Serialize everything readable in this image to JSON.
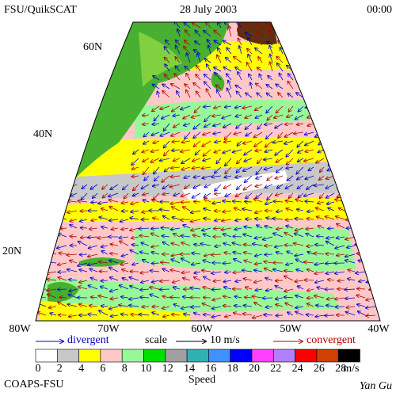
{
  "header": {
    "title": "FSU/QuikSCAT",
    "date": "28 July 2003",
    "time": "00:00"
  },
  "map": {
    "lat_labels": [
      "60N",
      "40N",
      "20N"
    ],
    "lon_labels": [
      "80W",
      "70W",
      "60W",
      "50W",
      "40W"
    ]
  },
  "legend": {
    "divergent": "divergent",
    "scale": "scale",
    "scale_value": "10 m/s",
    "convergent": "convergent"
  },
  "colorbar": {
    "labels": [
      "0",
      "2",
      "4",
      "6",
      "8",
      "10",
      "12",
      "14",
      "16",
      "18",
      "20",
      "22",
      "24",
      "26",
      "28"
    ],
    "colors": [
      "#ffffff",
      "#c8c8c8",
      "#ffff00",
      "#ffc8c8",
      "#98f898",
      "#00e000",
      "#a0a0a0",
      "#30b0b0",
      "#4090ff",
      "#0000ff",
      "#ff40ff",
      "#b080ff",
      "#ff0000",
      "#d04000",
      "#000000"
    ],
    "unit": "m/s",
    "title": "Speed"
  },
  "footer": {
    "org": "COAPS-FSU",
    "author": "Yan Gu"
  }
}
